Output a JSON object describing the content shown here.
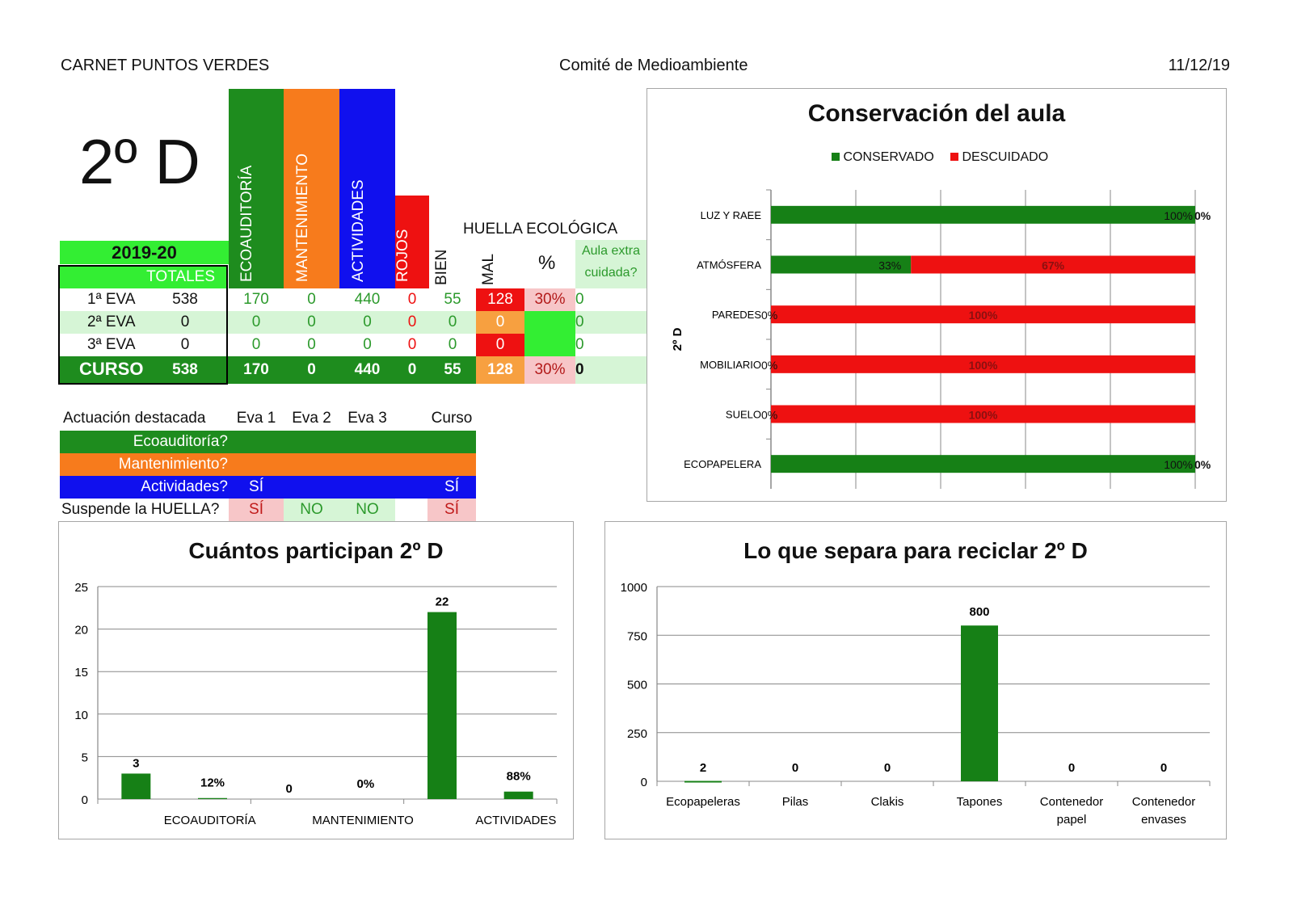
{
  "header": {
    "left": "CARNET PUNTOS VERDES",
    "center": "Comité de Medioambiente",
    "date": "11/12/19"
  },
  "class_name": "2º D",
  "year": "2019-20",
  "totals_label": "TOTALES",
  "columns": {
    "eco": "ECOAUDITORÍA",
    "mant": "MANTENIMIENTO",
    "act": "ACTIVIDADES",
    "rojos": "ROJOS",
    "bien": "BIEN",
    "mal": "MAL",
    "pct": "%",
    "aula": "Aula extra cuidada?"
  },
  "huella_label": "HUELLA ECOLÓGICA",
  "rows": [
    {
      "label": "1ª EVA",
      "total": "538",
      "eco": "170",
      "mant": "0",
      "act": "440",
      "rojos": "0",
      "bien": "55",
      "mal": "128",
      "pct": "30%",
      "aula": "0"
    },
    {
      "label": "2ª EVA",
      "total": "0",
      "eco": "0",
      "mant": "0",
      "act": "0",
      "rojos": "0",
      "bien": "0",
      "mal": "0",
      "pct": "",
      "aula": "0"
    },
    {
      "label": "3ª EVA",
      "total": "0",
      "eco": "0",
      "mant": "0",
      "act": "0",
      "rojos": "0",
      "bien": "0",
      "mal": "0",
      "pct": "",
      "aula": "0"
    },
    {
      "label": "CURSO",
      "total": "538",
      "eco": "170",
      "mant": "0",
      "act": "440",
      "rojos": "0",
      "bien": "55",
      "mal": "128",
      "pct": "30%",
      "aula": "0"
    }
  ],
  "actuacion": {
    "title": "Actuación destacada",
    "cols": [
      "Eva 1",
      "Eva 2",
      "Eva 3",
      "Curso"
    ],
    "eco_label": "Ecoauditoría?",
    "mant_label": "Mantenimiento?",
    "act_label": "Actividades?",
    "act_eva1": "SÍ",
    "act_curso": "SÍ",
    "huella_label": "Suspende la HUELLA?",
    "huella_vals": [
      "SÍ",
      "NO",
      "NO",
      "SÍ"
    ]
  },
  "colors": {
    "green": "#1e8c1e",
    "orange": "#f77b1c",
    "blue": "#1010ee",
    "red": "#ee1111",
    "bright_green": "#33ee33",
    "light_green": "#d6f5d6",
    "pink": "#f7c6c8",
    "chart_green": "#168016",
    "chart_red": "#ee1111"
  },
  "chart_data": [
    {
      "type": "bar",
      "orientation": "horizontal-stacked-100",
      "title": "Conservación del aula",
      "ylabel": "2º D",
      "legend_position": "top",
      "categories": [
        "LUZ Y RAEE",
        "ATMÓSFERA",
        "PAREDES",
        "MOBILIARIO",
        "SUELO",
        "ECOPAPELERA"
      ],
      "series": [
        {
          "name": "CONSERVADO",
          "values": [
            100,
            33,
            0,
            0,
            0,
            100
          ],
          "labels": [
            "100%",
            "33%",
            "0%",
            "0%",
            "0%",
            "100%"
          ]
        },
        {
          "name": "DESCUIDADO",
          "values": [
            0,
            67,
            100,
            100,
            100,
            0
          ],
          "labels": [
            "0%",
            "67%",
            "100%",
            "100%",
            "100%",
            "0%"
          ]
        }
      ],
      "xlim": [
        0,
        100
      ]
    },
    {
      "type": "bar",
      "title": "Cuántos participan 2º D",
      "categories": [
        "ECOAUDITORÍA",
        "MANTENIMIENTO",
        "ACTIVIDADES"
      ],
      "values": [
        3,
        0.12,
        0,
        0,
        22,
        0.88
      ],
      "labels": [
        "3",
        "12%",
        "0",
        "0%",
        "22",
        "88%"
      ],
      "ylim": [
        0,
        25
      ],
      "yticks": [
        "0",
        "5",
        "10",
        "15",
        "20",
        "25"
      ]
    },
    {
      "type": "bar",
      "title": "Lo que separa para reciclar 2º D",
      "categories": [
        "Ecopapeleras",
        "Pilas",
        "Clakis",
        "Tapones",
        "Contenedor papel",
        "Contenedor envases"
      ],
      "values": [
        2,
        0,
        0,
        800,
        0,
        0
      ],
      "ylim": [
        0,
        1000
      ],
      "yticks": [
        "0",
        "250",
        "500",
        "750",
        "1000"
      ]
    }
  ]
}
